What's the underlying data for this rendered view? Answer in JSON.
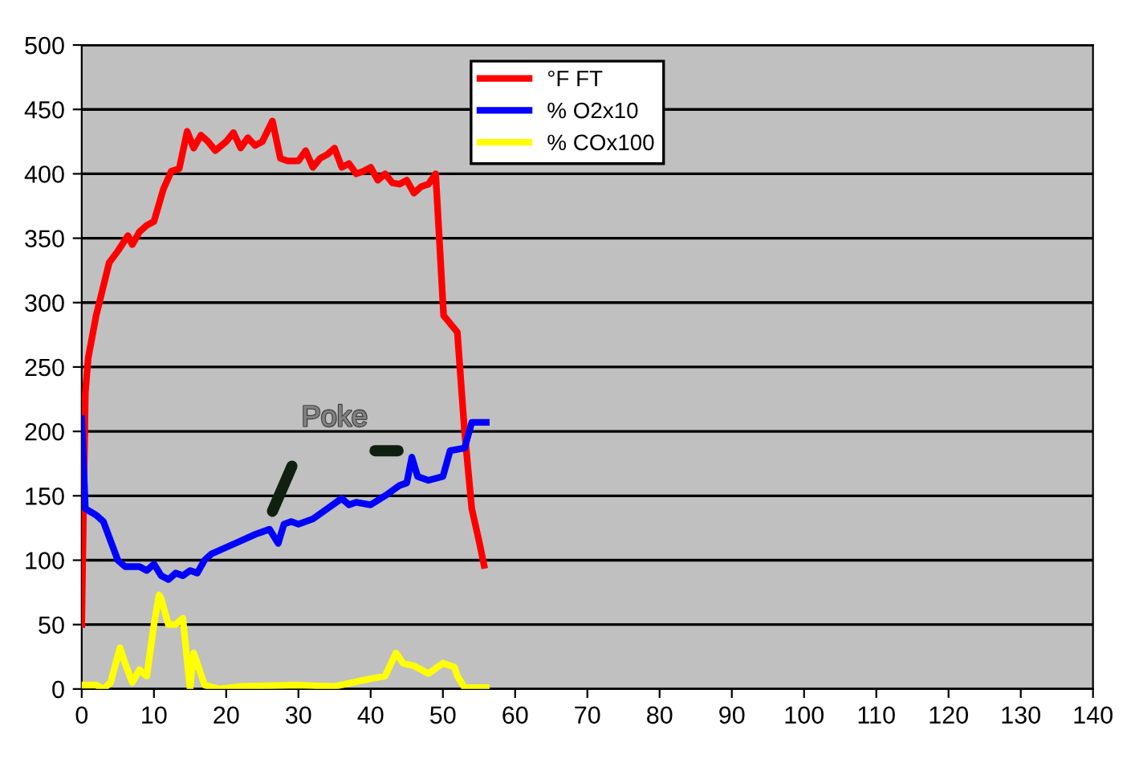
{
  "chart_data": {
    "type": "line",
    "xlim": [
      0,
      140
    ],
    "xticks": [
      0,
      10,
      20,
      30,
      40,
      50,
      60,
      70,
      80,
      90,
      100,
      110,
      120,
      130,
      140
    ],
    "ylim": [
      0,
      500
    ],
    "yticks": [
      0,
      50,
      100,
      150,
      200,
      250,
      300,
      350,
      400,
      450,
      500
    ],
    "grid": "y",
    "legend": "top",
    "marker": "none",
    "line_style": "solid",
    "series": [
      {
        "name": "°F FT",
        "color": "#ff0000",
        "x": [
          0,
          0.5,
          0.9,
          2,
          2.7,
          3.8,
          5,
          6.4,
          7,
          8,
          9,
          10,
          11.3,
          12.4,
          13.5,
          14.6,
          15.5,
          16.5,
          17.5,
          18.5,
          20,
          21,
          22,
          23,
          24,
          25,
          26.4,
          27.5,
          28.5,
          30,
          31,
          32,
          33,
          34,
          35,
          36,
          37,
          38,
          39,
          40,
          41,
          42,
          43,
          44,
          45,
          46,
          47,
          48,
          49,
          50.1,
          52,
          53,
          54,
          55,
          55.7
        ],
        "values": [
          50,
          230,
          257,
          290,
          306,
          331,
          340,
          352,
          345,
          355,
          360,
          363,
          388,
          402,
          404,
          433,
          420,
          430,
          425,
          418,
          425,
          432,
          420,
          428,
          422,
          425,
          441,
          412,
          410,
          410,
          418,
          405,
          412,
          415,
          420,
          405,
          408,
          400,
          402,
          405,
          395,
          400,
          393,
          392,
          395,
          385,
          390,
          392,
          400,
          290,
          277,
          200,
          140,
          115,
          96
        ]
      },
      {
        "name": "% O2x10",
        "color": "#0000ff",
        "x": [
          0,
          0.5,
          2,
          3,
          4,
          5,
          6,
          8,
          9,
          10,
          11,
          12,
          13,
          14,
          15,
          16,
          17,
          18,
          20,
          22,
          24,
          26,
          27.2,
          28,
          29,
          30,
          32,
          34,
          36,
          37,
          38,
          40,
          42,
          44,
          45,
          45.7,
          46.5,
          48,
          50,
          51,
          53,
          54,
          56
        ],
        "values": [
          210,
          140,
          135,
          130,
          115,
          100,
          95,
          95,
          92,
          97,
          88,
          85,
          90,
          88,
          92,
          90,
          100,
          105,
          110,
          115,
          120,
          124,
          113,
          128,
          130,
          128,
          132,
          140,
          148,
          143,
          145,
          143,
          150,
          158,
          160,
          180,
          165,
          162,
          165,
          185,
          187,
          207,
          207
        ]
      },
      {
        "name": "% COx100",
        "color": "#ffff00",
        "x": [
          0,
          2,
          3,
          4,
          5.3,
          6,
          7,
          8,
          9,
          10,
          10.7,
          11,
          12,
          13,
          14,
          15,
          15.5,
          16,
          17,
          19,
          22,
          30,
          35,
          40,
          42,
          43.5,
          44.5,
          46,
          48,
          50,
          51.6,
          52,
          53,
          56
        ],
        "values": [
          3,
          3,
          0,
          5,
          32,
          20,
          5,
          15,
          10,
          50,
          73,
          70,
          50,
          50,
          55,
          0,
          28,
          20,
          3,
          0,
          2,
          3,
          2,
          8,
          10,
          28,
          20,
          18,
          12,
          20,
          17,
          10,
          1,
          1
        ]
      }
    ],
    "annotations": [
      "Poke"
    ]
  }
}
